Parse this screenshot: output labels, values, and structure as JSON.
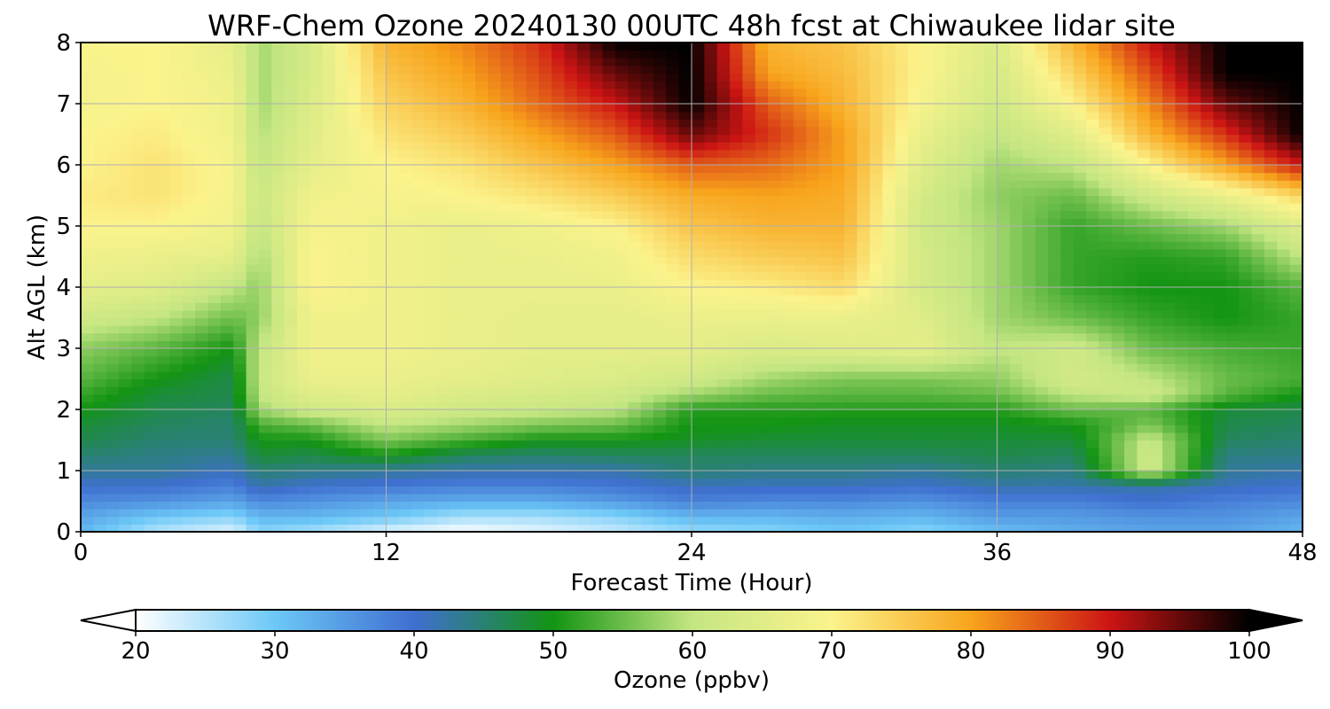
{
  "chart_data": {
    "type": "heatmap",
    "title": "WRF-Chem Ozone  20240130 00UTC 48h fcst at Chiwaukee lidar site",
    "xlabel": "Forecast Time (Hour)",
    "ylabel": "Alt AGL (km)",
    "xlim": [
      0,
      48
    ],
    "ylim": [
      0,
      8
    ],
    "x_ticks": [
      "0",
      "12",
      "24",
      "36",
      "48"
    ],
    "y_ticks": [
      "0",
      "1",
      "2",
      "3",
      "4",
      "5",
      "6",
      "7",
      "8"
    ],
    "grid": true,
    "x_hours": [
      0,
      3,
      6,
      7,
      9,
      12,
      15,
      18,
      21,
      24,
      27,
      30,
      33,
      36,
      39,
      42,
      45,
      48
    ],
    "y_km": [
      0,
      0.25,
      0.5,
      0.75,
      1,
      1.25,
      1.5,
      1.75,
      2,
      2.25,
      2.5,
      3,
      3.5,
      4,
      4.5,
      5,
      5.5,
      6,
      6.5,
      7,
      7.5,
      8
    ],
    "ozone_ppbv": [
      [
        32,
        25,
        22,
        28,
        26,
        22,
        20,
        22,
        24,
        27,
        28,
        30,
        28,
        31,
        33,
        34,
        34,
        32
      ],
      [
        34,
        30,
        28,
        32,
        32,
        30,
        26,
        26,
        28,
        32,
        32,
        33,
        32,
        35,
        35,
        36,
        36,
        34
      ],
      [
        37,
        36,
        34,
        37,
        36,
        34,
        33,
        33,
        35,
        38,
        37,
        37,
        36,
        38,
        38,
        40,
        38,
        37
      ],
      [
        40,
        40,
        38,
        42,
        40,
        39,
        38,
        38,
        39,
        41,
        41,
        41,
        40,
        42,
        42,
        42,
        41,
        40
      ],
      [
        43,
        43,
        41,
        45,
        44,
        43,
        42,
        42,
        42,
        45,
        44,
        44,
        43,
        45,
        44,
        62,
        43,
        42
      ],
      [
        45,
        44,
        43,
        48,
        47,
        50,
        46,
        45,
        46,
        46,
        46,
        46,
        46,
        47,
        46,
        62,
        44,
        44
      ],
      [
        47,
        45,
        45,
        50,
        50,
        56,
        53,
        50,
        50,
        49,
        48,
        48,
        48,
        48,
        48,
        61,
        46,
        45
      ],
      [
        48,
        46,
        45,
        53,
        55,
        60,
        58,
        56,
        55,
        50,
        50,
        49,
        49,
        49,
        50,
        56,
        47,
        46
      ],
      [
        50,
        47,
        46,
        58,
        62,
        64,
        62,
        61,
        60,
        51,
        51,
        51,
        51,
        51,
        55,
        54,
        48,
        47
      ],
      [
        52,
        48,
        47,
        60,
        65,
        66,
        64,
        63,
        62,
        58,
        55,
        54,
        54,
        55,
        60,
        62,
        54,
        50
      ],
      [
        54,
        50,
        47,
        61,
        67,
        67,
        66,
        65,
        64,
        62,
        58,
        56,
        56,
        57,
        63,
        60,
        55,
        53
      ],
      [
        57,
        54,
        50,
        60,
        68,
        68,
        67,
        66,
        66,
        66,
        64,
        65,
        66,
        60,
        62,
        55,
        53,
        52
      ],
      [
        62,
        60,
        55,
        57,
        68,
        68,
        67,
        66,
        66,
        67,
        67,
        67,
        65,
        58,
        55,
        52,
        50,
        52
      ],
      [
        66,
        65,
        60,
        57,
        70,
        68,
        67,
        67,
        67,
        70,
        71,
        73,
        63,
        58,
        52,
        50,
        50,
        54
      ],
      [
        68,
        67,
        66,
        58,
        70,
        68,
        67,
        67,
        68,
        73,
        75,
        76,
        63,
        58,
        52,
        51,
        52,
        60
      ],
      [
        70,
        70,
        68,
        60,
        69,
        68,
        67,
        68,
        70,
        76,
        78,
        78,
        62,
        58,
        52,
        55,
        58,
        65
      ],
      [
        71,
        72,
        69,
        61,
        68,
        69,
        70,
        72,
        75,
        79,
        80,
        79,
        63,
        57,
        55,
        62,
        67,
        74
      ],
      [
        70,
        72,
        69,
        60,
        66,
        70,
        72,
        76,
        80,
        85,
        84,
        80,
        65,
        58,
        60,
        70,
        80,
        90
      ],
      [
        70,
        71,
        68,
        59,
        65,
        72,
        75,
        80,
        85,
        95,
        88,
        80,
        67,
        60,
        65,
        78,
        88,
        100
      ],
      [
        69,
        70,
        68,
        58,
        64,
        74,
        78,
        84,
        90,
        100,
        85,
        78,
        69,
        62,
        70,
        82,
        95,
        100
      ],
      [
        69,
        70,
        67,
        58,
        63,
        76,
        80,
        86,
        95,
        100,
        80,
        77,
        70,
        63,
        74,
        86,
        100,
        100
      ],
      [
        70,
        70,
        66,
        58,
        63,
        78,
        82,
        88,
        100,
        100,
        78,
        76,
        70,
        64,
        78,
        90,
        100,
        100
      ]
    ]
  },
  "colorbar": {
    "label": "Ozone  (ppbv)",
    "vmin": 20,
    "vmax": 100,
    "ticks": [
      "20",
      "30",
      "40",
      "50",
      "60",
      "70",
      "80",
      "90",
      "100"
    ],
    "colors": [
      "#ffffff",
      "#6cc8f7",
      "#3f6fd0",
      "#139413",
      "#c4e682",
      "#fbf38c",
      "#f8a41c",
      "#cc1414",
      "#000000"
    ]
  }
}
